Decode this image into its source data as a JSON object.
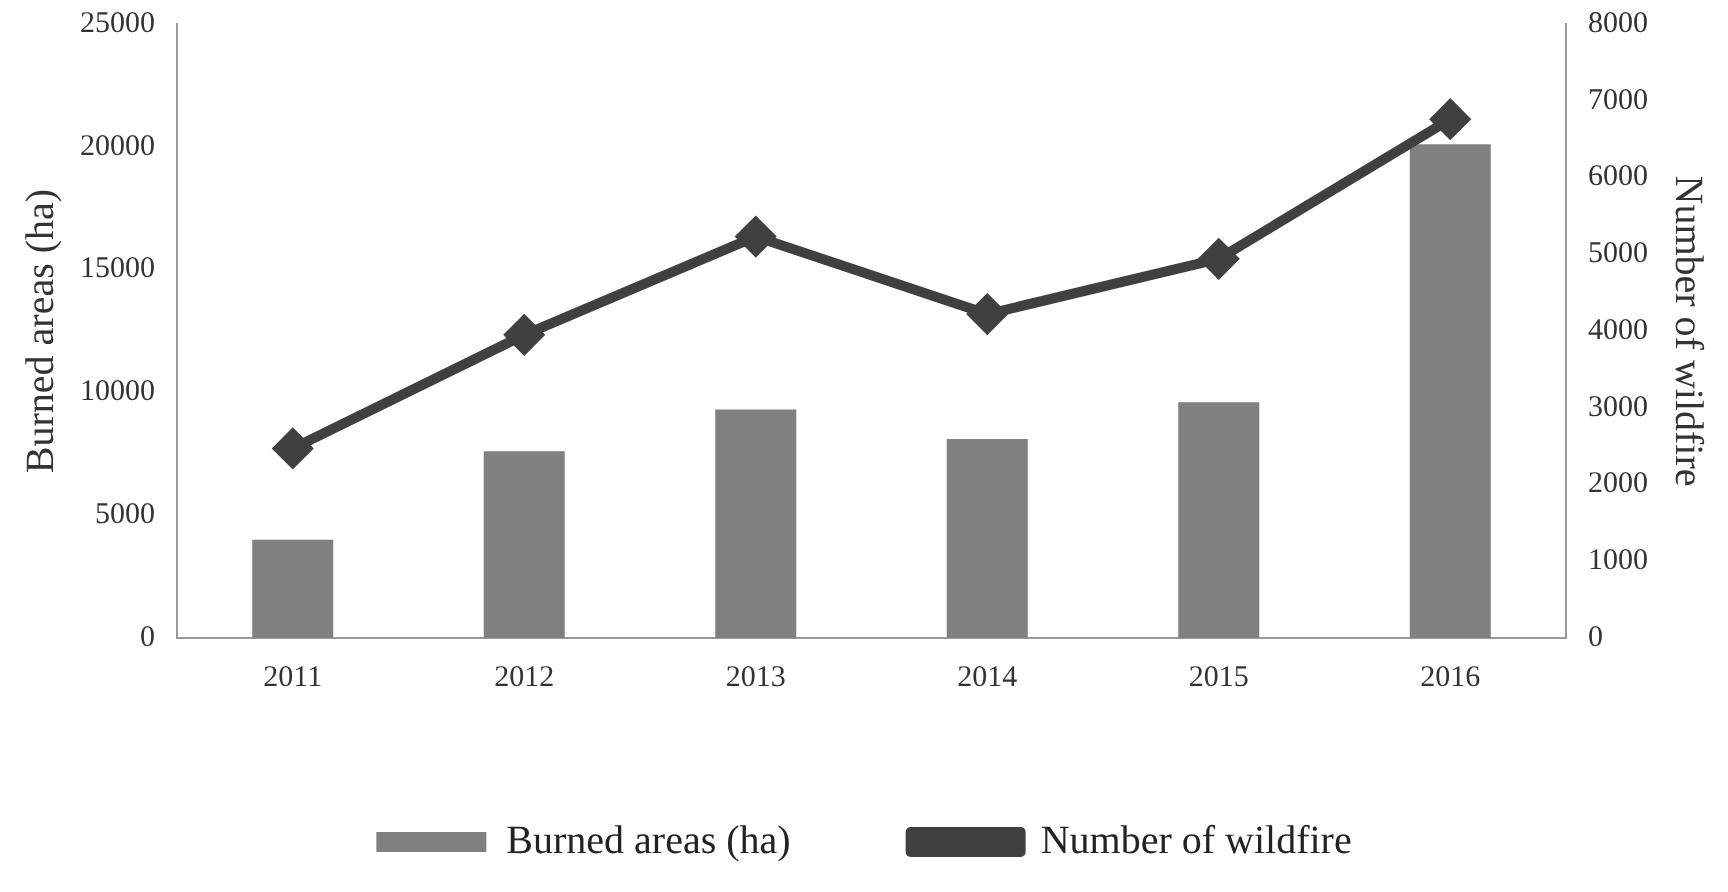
{
  "chart_data": {
    "type": "bar",
    "xlabel": null,
    "ylabel": "Burned areas (ha)",
    "y2label": "Number of wildfire",
    "categories": [
      "2011",
      "2012",
      "2013",
      "2014",
      "2015",
      "2016"
    ],
    "series": [
      {
        "name": "Burned areas (ha)",
        "color": "#808080",
        "values": [
          4000,
          7600,
          9300,
          8100,
          9600,
          20100
        ]
      },
      {
        "name": "Number of wildfire",
        "type": "line",
        "axis": "y2",
        "color": "#404040",
        "marker": "diamond",
        "values": [
          2470,
          3950,
          5230,
          4220,
          4940,
          6760
        ]
      }
    ],
    "ylim": [
      0,
      25000
    ],
    "yticks": [
      0,
      5000,
      10000,
      15000,
      20000,
      25000
    ],
    "y2lim": [
      0,
      8000
    ],
    "y2ticks": [
      0,
      1000,
      2000,
      3000,
      4000,
      5000,
      6000,
      7000,
      8000
    ],
    "grid": false,
    "legend": "bottom"
  }
}
